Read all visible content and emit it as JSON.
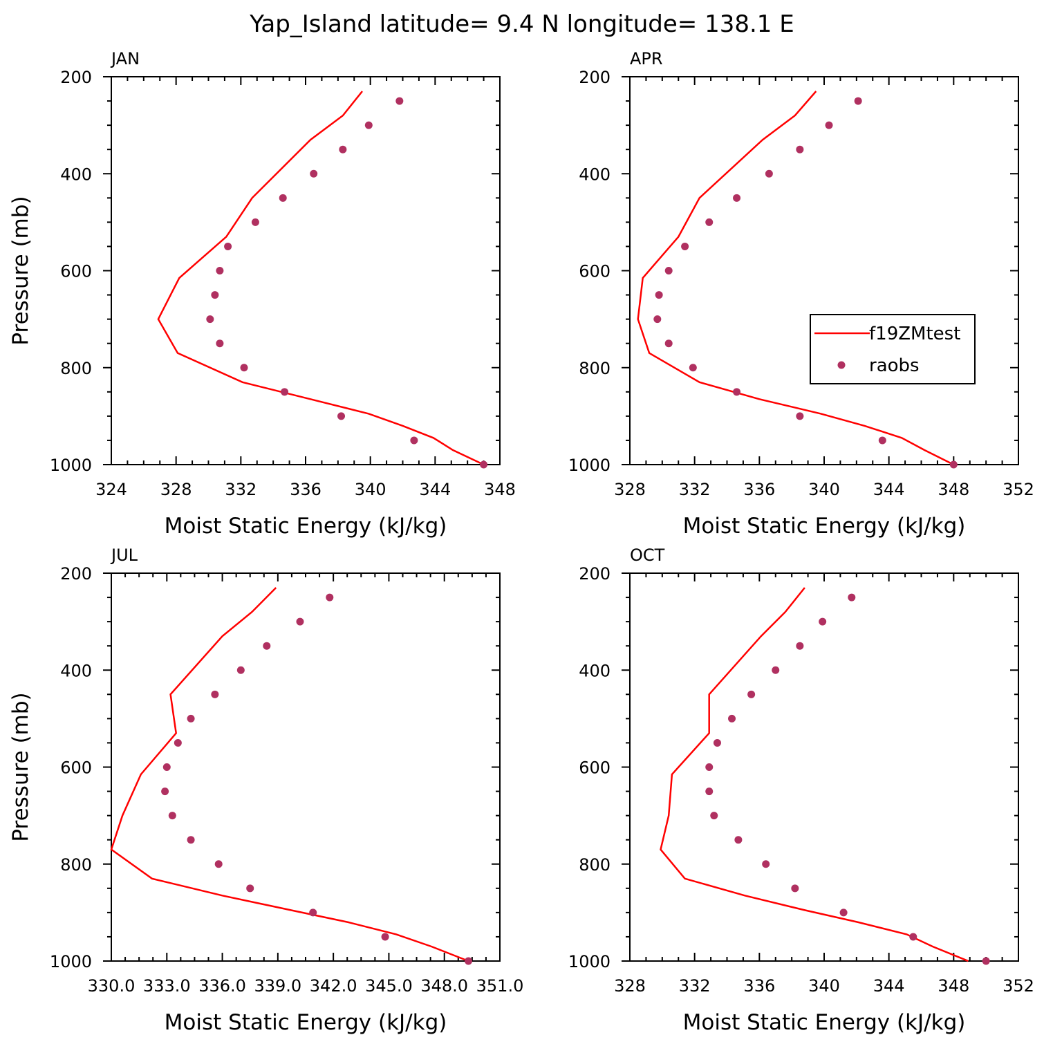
{
  "title": "Yap_Island  latitude= 9.4 N longitude= 138.1 E",
  "legend": {
    "model_label": "f19ZMtest",
    "obs_label": "raobs"
  },
  "colors": {
    "model": "#ff0000",
    "obs": "#b03060",
    "axis": "#000000"
  },
  "chart_data": [
    {
      "type": "line",
      "panel": "JAN",
      "xlabel": "Moist Static Energy (kJ/kg)",
      "ylabel": "Pressure (mb)",
      "xlim": [
        324,
        348
      ],
      "ylim": [
        1000,
        200
      ],
      "xticks": [
        324,
        328,
        332,
        336,
        340,
        344,
        348
      ],
      "xtick_labels": [
        "324",
        "328",
        "332",
        "336",
        "340",
        "344",
        "348"
      ],
      "yticks": [
        200,
        400,
        600,
        800,
        1000
      ],
      "model": {
        "x": [
          339.5,
          338.3,
          336.3,
          332.7,
          331.1,
          328.2,
          326.9,
          328.1,
          332.1,
          336.3,
          339.9,
          342.0,
          343.9,
          345.1,
          347.0
        ],
        "p": [
          230,
          280,
          330,
          450,
          530,
          615,
          700,
          770,
          830,
          865,
          895,
          920,
          945,
          970,
          1000
        ]
      },
      "obs": {
        "x": [
          341.8,
          339.9,
          338.3,
          336.5,
          334.6,
          332.9,
          331.2,
          330.7,
          330.4,
          330.1,
          330.7,
          332.2,
          334.7,
          338.2,
          342.7,
          347.0
        ],
        "p": [
          250,
          300,
          350,
          400,
          450,
          500,
          550,
          600,
          650,
          700,
          750,
          800,
          850,
          900,
          950,
          1000
        ]
      }
    },
    {
      "type": "line",
      "panel": "APR",
      "xlabel": "Moist Static Energy (kJ/kg)",
      "ylabel": "",
      "xlim": [
        328,
        352
      ],
      "ylim": [
        1000,
        200
      ],
      "xticks": [
        328,
        332,
        336,
        340,
        344,
        348,
        352
      ],
      "xtick_labels": [
        "328",
        "332",
        "336",
        "340",
        "344",
        "348",
        "352"
      ],
      "yticks": [
        200,
        400,
        600,
        800,
        1000
      ],
      "model": {
        "x": [
          339.5,
          338.2,
          336.2,
          332.3,
          331.0,
          328.8,
          328.5,
          329.2,
          332.3,
          336.0,
          339.8,
          342.5,
          344.8,
          346.2,
          348.0
        ],
        "p": [
          230,
          280,
          330,
          450,
          530,
          615,
          700,
          770,
          830,
          865,
          895,
          920,
          945,
          970,
          1000
        ]
      },
      "obs": {
        "x": [
          342.1,
          340.3,
          338.5,
          336.6,
          334.6,
          332.9,
          331.4,
          330.4,
          329.8,
          329.7,
          330.4,
          331.9,
          334.6,
          338.5,
          343.6,
          348.0
        ],
        "p": [
          250,
          300,
          350,
          400,
          450,
          500,
          550,
          600,
          650,
          700,
          750,
          800,
          850,
          900,
          950,
          1000
        ]
      }
    },
    {
      "type": "line",
      "panel": "JUL",
      "xlabel": "Moist Static Energy (kJ/kg)",
      "ylabel": "Pressure (mb)",
      "xlim": [
        330.0,
        351.0
      ],
      "ylim": [
        1000,
        200
      ],
      "xticks": [
        330.0,
        333.0,
        336.0,
        339.0,
        342.0,
        345.0,
        348.0,
        351.0
      ],
      "xtick_labels": [
        "330.0",
        "333.0",
        "336.0",
        "339.0",
        "342.0",
        "345.0",
        "348.0",
        "351.0"
      ],
      "yticks": [
        200,
        400,
        600,
        800,
        1000
      ],
      "model": {
        "x": [
          338.9,
          337.6,
          336.0,
          333.2,
          333.5,
          331.6,
          330.6,
          330.0,
          332.2,
          336.0,
          339.7,
          342.8,
          345.4,
          347.3,
          349.3
        ],
        "p": [
          230,
          280,
          330,
          450,
          530,
          615,
          700,
          770,
          830,
          865,
          895,
          920,
          945,
          970,
          1000
        ]
      },
      "obs": {
        "x": [
          341.8,
          340.2,
          338.4,
          337.0,
          335.6,
          334.3,
          333.6,
          333.0,
          332.9,
          333.3,
          334.3,
          335.8,
          337.5,
          340.9,
          344.8,
          349.3
        ],
        "p": [
          250,
          300,
          350,
          400,
          450,
          500,
          550,
          600,
          650,
          700,
          750,
          800,
          850,
          900,
          950,
          1000
        ]
      }
    },
    {
      "type": "line",
      "panel": "OCT",
      "xlabel": "Moist Static Energy (kJ/kg)",
      "ylabel": "",
      "xlim": [
        328,
        352
      ],
      "ylim": [
        1000,
        200
      ],
      "xticks": [
        328,
        332,
        336,
        340,
        344,
        348,
        352
      ],
      "xtick_labels": [
        "328",
        "332",
        "336",
        "340",
        "344",
        "348",
        "352"
      ],
      "yticks": [
        200,
        400,
        600,
        800,
        1000
      ],
      "model": {
        "x": [
          338.8,
          337.6,
          336.1,
          332.9,
          332.9,
          330.6,
          330.4,
          329.9,
          331.4,
          335.1,
          338.8,
          342.1,
          345.1,
          346.7,
          348.9
        ],
        "p": [
          230,
          280,
          330,
          450,
          530,
          615,
          700,
          770,
          830,
          865,
          895,
          920,
          945,
          970,
          1000
        ]
      },
      "obs": {
        "x": [
          341.7,
          339.9,
          338.5,
          337.0,
          335.5,
          334.3,
          333.4,
          332.9,
          332.9,
          333.2,
          334.7,
          336.4,
          338.2,
          341.2,
          345.5,
          350.0
        ],
        "p": [
          250,
          300,
          350,
          400,
          450,
          500,
          550,
          600,
          650,
          700,
          750,
          800,
          850,
          900,
          950,
          1000
        ]
      }
    }
  ]
}
